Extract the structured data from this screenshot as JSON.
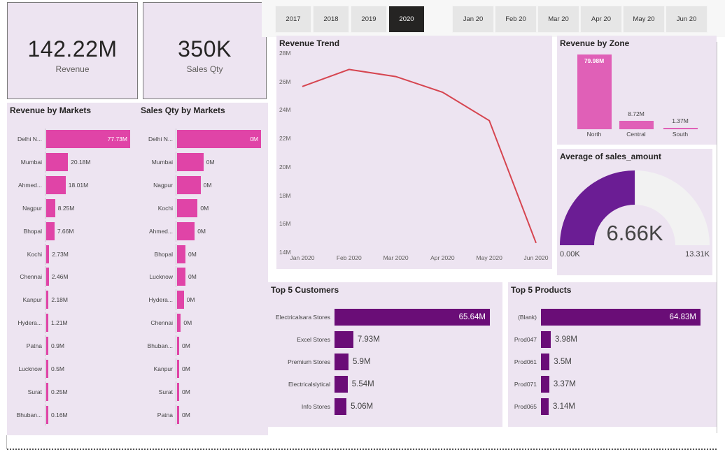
{
  "kpis": {
    "revenue": {
      "value": "142.22M",
      "label": "Revenue"
    },
    "sales_qty": {
      "value": "350K",
      "label": "Sales Qty"
    }
  },
  "year_slicer": [
    {
      "label": "2017",
      "selected": false
    },
    {
      "label": "2018",
      "selected": false
    },
    {
      "label": "2019",
      "selected": false
    },
    {
      "label": "2020",
      "selected": true
    }
  ],
  "month_slicer": [
    {
      "label": "Jan 20"
    },
    {
      "label": "Feb 20"
    },
    {
      "label": "Mar 20"
    },
    {
      "label": "Apr 20"
    },
    {
      "label": "May 20"
    },
    {
      "label": "Jun 20"
    }
  ],
  "revenue_by_markets": {
    "title": "Revenue by Markets",
    "rows": [
      {
        "label": "Delhi N...",
        "value": 77.73,
        "display": "77.73M"
      },
      {
        "label": "Mumbai",
        "value": 20.18,
        "display": "20.18M"
      },
      {
        "label": "Ahmed...",
        "value": 18.01,
        "display": "18.01M"
      },
      {
        "label": "Nagpur",
        "value": 8.25,
        "display": "8.25M"
      },
      {
        "label": "Bhopal",
        "value": 7.66,
        "display": "7.66M"
      },
      {
        "label": "Kochi",
        "value": 2.73,
        "display": "2.73M"
      },
      {
        "label": "Chennai",
        "value": 2.46,
        "display": "2.46M"
      },
      {
        "label": "Kanpur",
        "value": 2.18,
        "display": "2.18M"
      },
      {
        "label": "Hydera...",
        "value": 1.21,
        "display": "1.21M"
      },
      {
        "label": "Patna",
        "value": 0.9,
        "display": "0.9M"
      },
      {
        "label": "Lucknow",
        "value": 0.5,
        "display": "0.5M"
      },
      {
        "label": "Surat",
        "value": 0.25,
        "display": "0.25M"
      },
      {
        "label": "Bhuban...",
        "value": 0.16,
        "display": "0.16M"
      }
    ]
  },
  "sales_qty_by_markets": {
    "title": "Sales Qty by Markets",
    "rows": [
      {
        "label": "Delhi N...",
        "value": 1.0,
        "display": "0M"
      },
      {
        "label": "Mumbai",
        "value": 0.315,
        "display": "0M"
      },
      {
        "label": "Nagpur",
        "value": 0.28,
        "display": "0M"
      },
      {
        "label": "Kochi",
        "value": 0.245,
        "display": "0M"
      },
      {
        "label": "Ahmed...",
        "value": 0.21,
        "display": "0M"
      },
      {
        "label": "Bhopal",
        "value": 0.1,
        "display": "0M"
      },
      {
        "label": "Lucknow",
        "value": 0.1,
        "display": "0M"
      },
      {
        "label": "Hydera...",
        "value": 0.08,
        "display": "0M"
      },
      {
        "label": "Chennai",
        "value": 0.045,
        "display": "0M"
      },
      {
        "label": "Bhuban...",
        "value": 0.015,
        "display": "0M"
      },
      {
        "label": "Kanpur",
        "value": 0.012,
        "display": "0M"
      },
      {
        "label": "Surat",
        "value": 0.01,
        "display": "0M"
      },
      {
        "label": "Patna",
        "value": 0.008,
        "display": "0M"
      }
    ]
  },
  "revenue_trend": {
    "title": "Revenue Trend",
    "y_ticks": [
      "28M",
      "26M",
      "24M",
      "22M",
      "20M",
      "18M",
      "16M",
      "14M"
    ]
  },
  "revenue_by_zone": {
    "title": "Revenue by Zone",
    "zones": [
      {
        "label": "North",
        "value": 79.98,
        "display": "79.98M"
      },
      {
        "label": "Central",
        "value": 8.72,
        "display": "8.72M"
      },
      {
        "label": "South",
        "value": 1.37,
        "display": "1.37M"
      }
    ]
  },
  "gauge": {
    "title": "Average of sales_amount",
    "value": 6.66,
    "display": "6.66K",
    "min": 0,
    "max": 13.31,
    "min_label": "0.00K",
    "max_label": "13.31K",
    "fill_color": "#6b1d94",
    "track_color": "#f2f2f2"
  },
  "top_customers": {
    "title": "Top 5 Customers",
    "rows": [
      {
        "label": "Electricalsara Stores",
        "value": 65.64,
        "display": "65.64M"
      },
      {
        "label": "Excel Stores",
        "value": 7.93,
        "display": "7.93M"
      },
      {
        "label": "Premium Stores",
        "value": 5.9,
        "display": "5.9M"
      },
      {
        "label": "Electricalslytical",
        "value": 5.54,
        "display": "5.54M"
      },
      {
        "label": "Info Stores",
        "value": 5.06,
        "display": "5.06M"
      }
    ]
  },
  "top_products": {
    "title": "Top 5 Products",
    "rows": [
      {
        "label": "(Blank)",
        "value": 64.83,
        "display": "64.83M"
      },
      {
        "label": "Prod047",
        "value": 3.98,
        "display": "3.98M"
      },
      {
        "label": "Prod061",
        "value": 3.5,
        "display": "3.5M"
      },
      {
        "label": "Prod071",
        "value": 3.37,
        "display": "3.37M"
      },
      {
        "label": "Prod065",
        "value": 3.14,
        "display": "3.14M"
      }
    ]
  },
  "chart_data": [
    {
      "type": "line",
      "title": "Revenue Trend",
      "x": [
        "Jan 2020",
        "Feb 2020",
        "Mar 2020",
        "Apr 2020",
        "May 2020",
        "Jun 2020"
      ],
      "series": [
        {
          "values": [
            25.7,
            26.9,
            26.4,
            25.3,
            23.3,
            14.7
          ]
        }
      ],
      "ylim": [
        14,
        28
      ],
      "ylabel_unit": "M",
      "color": "#d64550"
    },
    {
      "type": "bar",
      "title": "Revenue by Zone",
      "categories": [
        "North",
        "Central",
        "South"
      ],
      "values": [
        79.98,
        8.72,
        1.37
      ]
    }
  ]
}
